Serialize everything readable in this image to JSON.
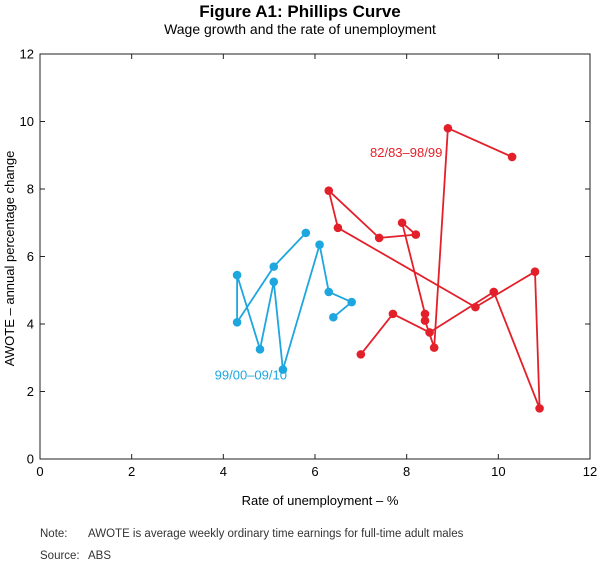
{
  "chart_data": {
    "type": "scatter",
    "title": "Figure A1: Phillips Curve",
    "subtitle": "Wage growth and the rate of unemployment",
    "xlabel": "Rate of unemployment – %",
    "ylabel": "AWOTE – annual percentage change",
    "xlim": [
      0,
      12
    ],
    "ylim": [
      0,
      12
    ],
    "xticks": [
      "0",
      "2",
      "4",
      "6",
      "8",
      "10",
      "12"
    ],
    "yticks": [
      "0",
      "2",
      "4",
      "6",
      "8",
      "10",
      "12"
    ],
    "grid": false,
    "connected": true,
    "series": [
      {
        "name": "82/83–98/99",
        "color": "#e3202a",
        "points": [
          [
            10.3,
            8.95
          ],
          [
            8.9,
            9.8
          ],
          [
            8.6,
            3.3
          ],
          [
            8.4,
            4.1
          ],
          [
            8.4,
            4.3
          ],
          [
            7.9,
            7.0
          ],
          [
            8.2,
            6.65
          ],
          [
            7.4,
            6.55
          ],
          [
            6.3,
            7.95
          ],
          [
            6.5,
            6.85
          ],
          [
            9.5,
            4.5
          ],
          [
            10.8,
            5.55
          ],
          [
            10.9,
            1.5
          ],
          [
            9.9,
            4.95
          ],
          [
            8.5,
            3.75
          ],
          [
            7.7,
            4.3
          ],
          [
            7.0,
            3.1
          ]
        ]
      },
      {
        "name": "99/00–09/10",
        "color": "#1ea6df",
        "points": [
          [
            6.4,
            4.2
          ],
          [
            6.8,
            4.65
          ],
          [
            6.3,
            4.95
          ],
          [
            6.1,
            6.35
          ],
          [
            5.3,
            2.65
          ],
          [
            5.1,
            5.25
          ],
          [
            4.8,
            3.25
          ],
          [
            4.3,
            5.45
          ],
          [
            4.3,
            4.05
          ],
          [
            5.1,
            5.7
          ],
          [
            5.8,
            6.7
          ]
        ]
      }
    ]
  },
  "notes": {
    "note_label": "Note:",
    "note_text": "AWOTE is average weekly ordinary time earnings for full-time adult males",
    "source_label": "Source:",
    "source_text": "ABS"
  }
}
